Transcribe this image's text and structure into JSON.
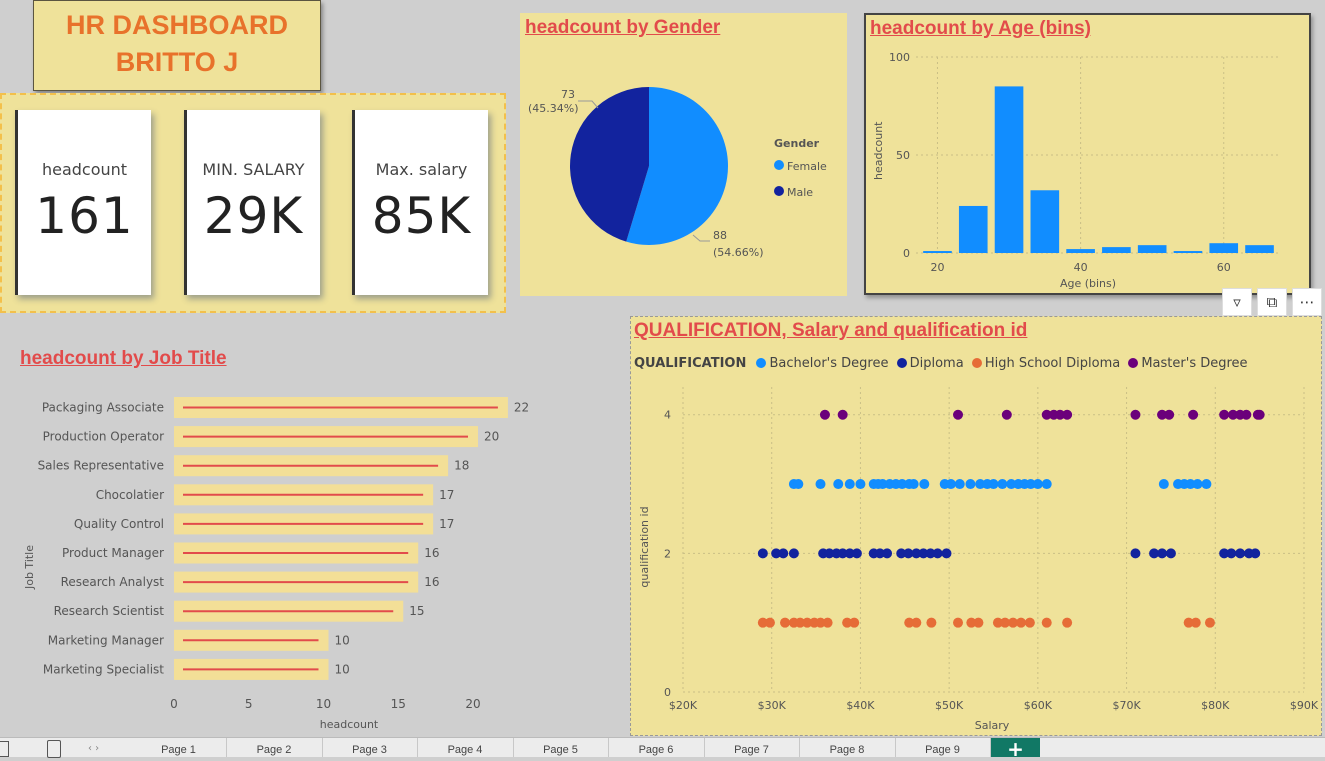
{
  "header": {
    "line1": "HR  DASHBOARD",
    "line2": "BRITTO J"
  },
  "kpis": [
    {
      "label": "headcount",
      "value": "161"
    },
    {
      "label": "MIN. SALARY",
      "value": "29K"
    },
    {
      "label": "Max. salary",
      "value": "85K"
    }
  ],
  "gender_chart": {
    "title": "headcount by Gender",
    "chart_data": {
      "type": "pie",
      "legend_title": "Gender",
      "slices": [
        {
          "name": "Female",
          "value": 88,
          "label_value": "88",
          "label_pct": "(54.66%)",
          "color": "#118dff"
        },
        {
          "name": "Male",
          "value": 73,
          "label_value": "73",
          "label_pct": "(45.34%)",
          "color": "#12239e"
        }
      ]
    }
  },
  "age_chart": {
    "title": "headcount by Age (bins)",
    "chart_data": {
      "type": "bar",
      "xlabel": "Age (bins)",
      "ylabel": "headcount",
      "xlim": [
        17,
        68
      ],
      "ylim": [
        0,
        100
      ],
      "xticks": [
        "20",
        "40",
        "60"
      ],
      "yticks": [
        "0",
        "50",
        "100"
      ],
      "bin_width": 4,
      "bins": [
        {
          "x": 20,
          "value": 1
        },
        {
          "x": 25,
          "value": 24
        },
        {
          "x": 30,
          "value": 85
        },
        {
          "x": 35,
          "value": 32
        },
        {
          "x": 40,
          "value": 2
        },
        {
          "x": 45,
          "value": 3
        },
        {
          "x": 50,
          "value": 4
        },
        {
          "x": 55,
          "value": 1
        },
        {
          "x": 60,
          "value": 5
        },
        {
          "x": 65,
          "value": 4
        }
      ],
      "color": "#118dff"
    }
  },
  "job_chart": {
    "title": "headcount by Job Title",
    "chart_data": {
      "type": "bar",
      "orientation": "horizontal",
      "xlabel": "headcount",
      "ylabel": "Job Title",
      "xlim": [
        0,
        22
      ],
      "xticks": [
        "0",
        "5",
        "10",
        "15",
        "20"
      ],
      "categories": [
        "Packaging Associate",
        "Production Operator",
        "Sales Representative",
        "Chocolatier",
        "Quality Control",
        "Product Manager",
        "Research Analyst",
        "Research Scientist",
        "Marketing Manager",
        "Marketing Specialist"
      ],
      "values": [
        22,
        20,
        18,
        17,
        17,
        16,
        16,
        15,
        10,
        10
      ],
      "bar_color": "#f3df97",
      "line_color": "#e24b4b"
    }
  },
  "scatter_chart": {
    "title": "QUALIFICATION, Salary and qualification id",
    "legend_title": "QUALIFICATION",
    "chart_data": {
      "type": "scatter",
      "xlabel": "Salary",
      "ylabel": "qualification id",
      "xlim": [
        20000,
        90000
      ],
      "ylim": [
        0,
        4.4
      ],
      "xticks": [
        "$20K",
        "$30K",
        "$40K",
        "$50K",
        "$60K",
        "$70K",
        "$80K",
        "$90K"
      ],
      "yticks": [
        "0",
        "2",
        "4"
      ],
      "series": [
        {
          "name": "Bachelor's Degree",
          "color": "#118dff",
          "y": 3,
          "x": [
            32500,
            33000,
            35500,
            37500,
            38800,
            40000,
            41500,
            42000,
            42500,
            43300,
            44000,
            44700,
            45500,
            46000,
            47200,
            49500,
            50200,
            51200,
            52400,
            53500,
            54300,
            55000,
            56000,
            57000,
            57800,
            58500,
            59200,
            60000,
            61000,
            74200,
            75800,
            76500,
            77200,
            78000,
            79000
          ]
        },
        {
          "name": "Diploma",
          "color": "#12239e",
          "y": 2,
          "x": [
            29000,
            30500,
            31300,
            32500,
            35800,
            36500,
            37300,
            38000,
            38800,
            39600,
            41500,
            42200,
            43000,
            44600,
            45400,
            46300,
            47100,
            47900,
            48700,
            49700,
            71000,
            73100,
            74000,
            75000,
            81000,
            81800,
            82800,
            83800,
            84500
          ]
        },
        {
          "name": "High School Diploma",
          "color": "#e66c37",
          "y": 1,
          "x": [
            29000,
            29800,
            31500,
            32500,
            33200,
            34000,
            34800,
            35500,
            36300,
            38500,
            39300,
            45500,
            46300,
            48000,
            51000,
            52500,
            53300,
            55500,
            56300,
            57200,
            58100,
            59100,
            61000,
            63300,
            77000,
            77800,
            79400
          ]
        },
        {
          "name": "Master's Degree",
          "color": "#6b007b",
          "y": 4,
          "x": [
            36000,
            38000,
            51000,
            56500,
            61000,
            61800,
            62500,
            63300,
            71000,
            74000,
            74800,
            77500,
            81000,
            82000,
            82800,
            83500,
            84800,
            85000
          ]
        }
      ]
    }
  },
  "tabs": [
    "Page 1",
    "Page 2",
    "Page 3",
    "Page 4",
    "Page 5",
    "Page 6",
    "Page 7",
    "Page 8",
    "Page 9"
  ]
}
